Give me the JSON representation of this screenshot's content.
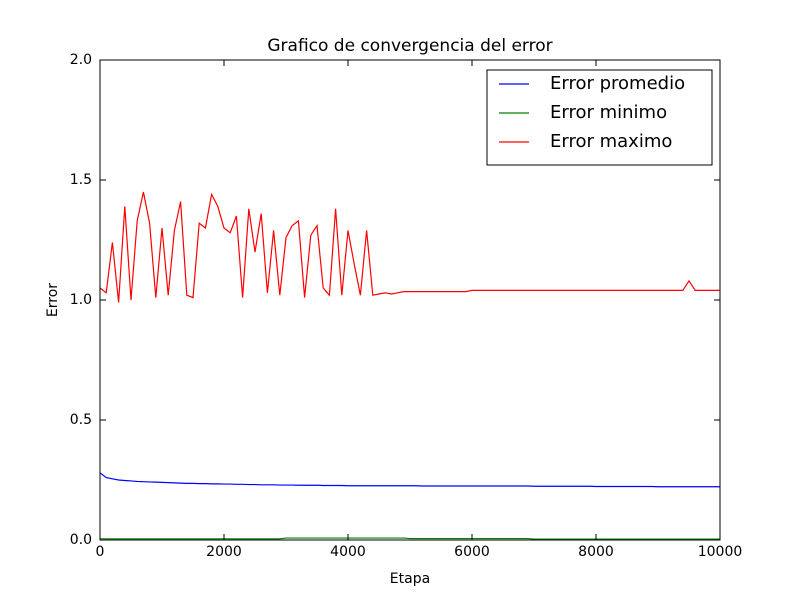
{
  "chart_data": {
    "type": "line",
    "title": "Grafico de convergencia del error",
    "xlabel": "Etapa",
    "ylabel": "Error",
    "x": [
      0,
      100,
      200,
      300,
      400,
      500,
      600,
      700,
      800,
      900,
      1000,
      1100,
      1200,
      1300,
      1400,
      1500,
      1600,
      1700,
      1800,
      1900,
      2000,
      2100,
      2200,
      2300,
      2400,
      2500,
      2600,
      2700,
      2800,
      2900,
      3000,
      3100,
      3200,
      3300,
      3400,
      3500,
      3600,
      3700,
      3800,
      3900,
      4000,
      4100,
      4200,
      4300,
      4400,
      4500,
      4600,
      4700,
      4800,
      4900,
      5000,
      5100,
      5200,
      5300,
      5400,
      5500,
      5600,
      5700,
      5800,
      5900,
      6000,
      6100,
      6200,
      6300,
      6400,
      6500,
      6600,
      6700,
      6800,
      6900,
      7000,
      7100,
      7200,
      7300,
      7400,
      7500,
      7600,
      7700,
      7800,
      7900,
      8000,
      8100,
      8200,
      8300,
      8400,
      8500,
      8600,
      8700,
      8800,
      8900,
      9000,
      9100,
      9200,
      9300,
      9400,
      9500,
      9600,
      9700,
      9800,
      9900,
      10000
    ],
    "series": [
      {
        "name": "Error promedio",
        "color": "#0000ff",
        "values": [
          0.28,
          0.26,
          0.255,
          0.25,
          0.248,
          0.246,
          0.244,
          0.243,
          0.242,
          0.241,
          0.24,
          0.239,
          0.238,
          0.237,
          0.236,
          0.236,
          0.235,
          0.235,
          0.234,
          0.234,
          0.233,
          0.233,
          0.232,
          0.232,
          0.231,
          0.231,
          0.23,
          0.23,
          0.23,
          0.229,
          0.229,
          0.229,
          0.228,
          0.228,
          0.228,
          0.228,
          0.227,
          0.227,
          0.227,
          0.227,
          0.226,
          0.226,
          0.226,
          0.226,
          0.226,
          0.226,
          0.226,
          0.226,
          0.226,
          0.226,
          0.226,
          0.226,
          0.225,
          0.225,
          0.225,
          0.225,
          0.225,
          0.225,
          0.225,
          0.225,
          0.225,
          0.225,
          0.225,
          0.225,
          0.225,
          0.225,
          0.225,
          0.225,
          0.225,
          0.225,
          0.224,
          0.224,
          0.224,
          0.224,
          0.224,
          0.224,
          0.224,
          0.224,
          0.224,
          0.224,
          0.223,
          0.223,
          0.223,
          0.223,
          0.223,
          0.223,
          0.223,
          0.223,
          0.223,
          0.223,
          0.222,
          0.222,
          0.222,
          0.222,
          0.222,
          0.222,
          0.222,
          0.222,
          0.222,
          0.222,
          0.222
        ]
      },
      {
        "name": "Error minimo",
        "color": "#008000",
        "values": [
          0.005,
          0.005,
          0.005,
          0.005,
          0.005,
          0.005,
          0.005,
          0.005,
          0.005,
          0.005,
          0.005,
          0.005,
          0.005,
          0.005,
          0.005,
          0.005,
          0.005,
          0.005,
          0.005,
          0.005,
          0.005,
          0.005,
          0.005,
          0.005,
          0.005,
          0.005,
          0.005,
          0.005,
          0.005,
          0.005,
          0.008,
          0.008,
          0.008,
          0.008,
          0.008,
          0.008,
          0.008,
          0.008,
          0.008,
          0.008,
          0.008,
          0.008,
          0.008,
          0.008,
          0.008,
          0.008,
          0.008,
          0.008,
          0.008,
          0.008,
          0.006,
          0.006,
          0.006,
          0.006,
          0.006,
          0.006,
          0.006,
          0.006,
          0.006,
          0.006,
          0.006,
          0.006,
          0.006,
          0.006,
          0.006,
          0.006,
          0.006,
          0.006,
          0.006,
          0.006,
          0.004,
          0.004,
          0.004,
          0.004,
          0.004,
          0.004,
          0.004,
          0.004,
          0.004,
          0.004,
          0.004,
          0.004,
          0.004,
          0.004,
          0.004,
          0.004,
          0.004,
          0.004,
          0.004,
          0.004,
          0.004,
          0.004,
          0.004,
          0.004,
          0.004,
          0.004,
          0.004,
          0.004,
          0.004,
          0.004,
          0.004
        ]
      },
      {
        "name": "Error maximo",
        "color": "#ff0000",
        "values": [
          1.05,
          1.03,
          1.24,
          0.99,
          1.39,
          1.0,
          1.33,
          1.45,
          1.32,
          1.01,
          1.3,
          1.02,
          1.29,
          1.41,
          1.02,
          1.01,
          1.32,
          1.3,
          1.44,
          1.39,
          1.3,
          1.28,
          1.35,
          1.01,
          1.38,
          1.2,
          1.36,
          1.03,
          1.29,
          1.02,
          1.26,
          1.31,
          1.33,
          1.01,
          1.27,
          1.31,
          1.05,
          1.02,
          1.38,
          1.02,
          1.29,
          1.15,
          1.02,
          1.29,
          1.02,
          1.025,
          1.03,
          1.025,
          1.03,
          1.035,
          1.035,
          1.035,
          1.035,
          1.035,
          1.035,
          1.035,
          1.035,
          1.035,
          1.035,
          1.035,
          1.04,
          1.04,
          1.04,
          1.04,
          1.04,
          1.04,
          1.04,
          1.04,
          1.04,
          1.04,
          1.04,
          1.04,
          1.04,
          1.04,
          1.04,
          1.04,
          1.04,
          1.04,
          1.04,
          1.04,
          1.04,
          1.04,
          1.04,
          1.04,
          1.04,
          1.04,
          1.04,
          1.04,
          1.04,
          1.04,
          1.04,
          1.04,
          1.04,
          1.04,
          1.04,
          1.08,
          1.04,
          1.04,
          1.04,
          1.04,
          1.04
        ]
      }
    ],
    "xlim": [
      0,
      10000
    ],
    "xticks": [
      0,
      2000,
      4000,
      6000,
      8000,
      10000
    ],
    "ylim": [
      0,
      2
    ],
    "yticks": [
      {
        "value": 0,
        "label": "0.0"
      },
      0.5,
      {
        "value": 1,
        "label": "1.0"
      },
      1.5,
      {
        "value": 2,
        "label": "2.0"
      }
    ],
    "grid": false,
    "legend": "upper right"
  }
}
